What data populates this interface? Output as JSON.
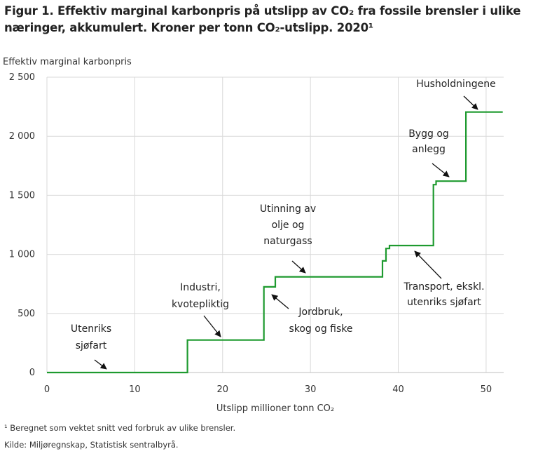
{
  "figure": {
    "title_line1": "Figur 1. Effektiv marginal karbonpris på utslipp av CO₂ fra fossile brensler i ulike",
    "title_line2": "næringer, akkumulert. Kroner per tonn CO₂-utslipp. 2020¹",
    "footnote": "¹ Beregnet som vektet snitt ved forbruk av ulike brensler.",
    "source": "Kilde: Miljøregnskap, Statistisk sentralbyrå."
  },
  "colors": {
    "line": "#1e9a2f",
    "grid": "#d9d9d9",
    "text": "#222222"
  },
  "chart_data": {
    "type": "line",
    "step": true,
    "ylabel": "Effektiv  marginal  karbonpris",
    "xlabel": "Utslipp  millioner  tonn CO₂",
    "xlim": [
      0,
      52
    ],
    "ylim": [
      0,
      2500
    ],
    "xticks": [
      0,
      10,
      20,
      30,
      40,
      50
    ],
    "xtick_labels": [
      "0",
      "10",
      "20",
      "30",
      "40",
      "50"
    ],
    "yticks": [
      0,
      500,
      1000,
      1500,
      2000,
      2500
    ],
    "ytick_labels": [
      "0",
      "500",
      "1 000",
      "1 500",
      "2 000",
      "2 500"
    ],
    "grid": true,
    "series": [
      {
        "x": [
          0,
          16,
          16,
          24.7,
          24.7,
          26,
          26,
          38.2,
          38.2,
          38.6,
          38.6,
          39,
          39,
          44,
          44,
          44.3,
          44.3,
          47.7,
          47.7,
          51.9
        ],
        "y": [
          0,
          0,
          275,
          275,
          725,
          725,
          810,
          810,
          945,
          945,
          1050,
          1050,
          1075,
          1075,
          1590,
          1590,
          1620,
          1620,
          2205,
          2205
        ]
      }
    ],
    "annotations": [
      {
        "lines": [
          "Utenriks",
          "sjøfart"
        ]
      },
      {
        "lines": [
          "Industri,",
          "kvotepliktig"
        ]
      },
      {
        "lines": [
          "Jordbruk,",
          "skog og fiske"
        ]
      },
      {
        "lines": [
          "Utinning av",
          "olje og",
          "naturgass"
        ]
      },
      {
        "lines": [
          "Transport,  ekskl.",
          "utenriks  sjøfart"
        ]
      },
      {
        "lines": [
          "Bygg og",
          "anlegg"
        ]
      },
      {
        "lines": [
          "Husholdningene"
        ]
      }
    ]
  }
}
